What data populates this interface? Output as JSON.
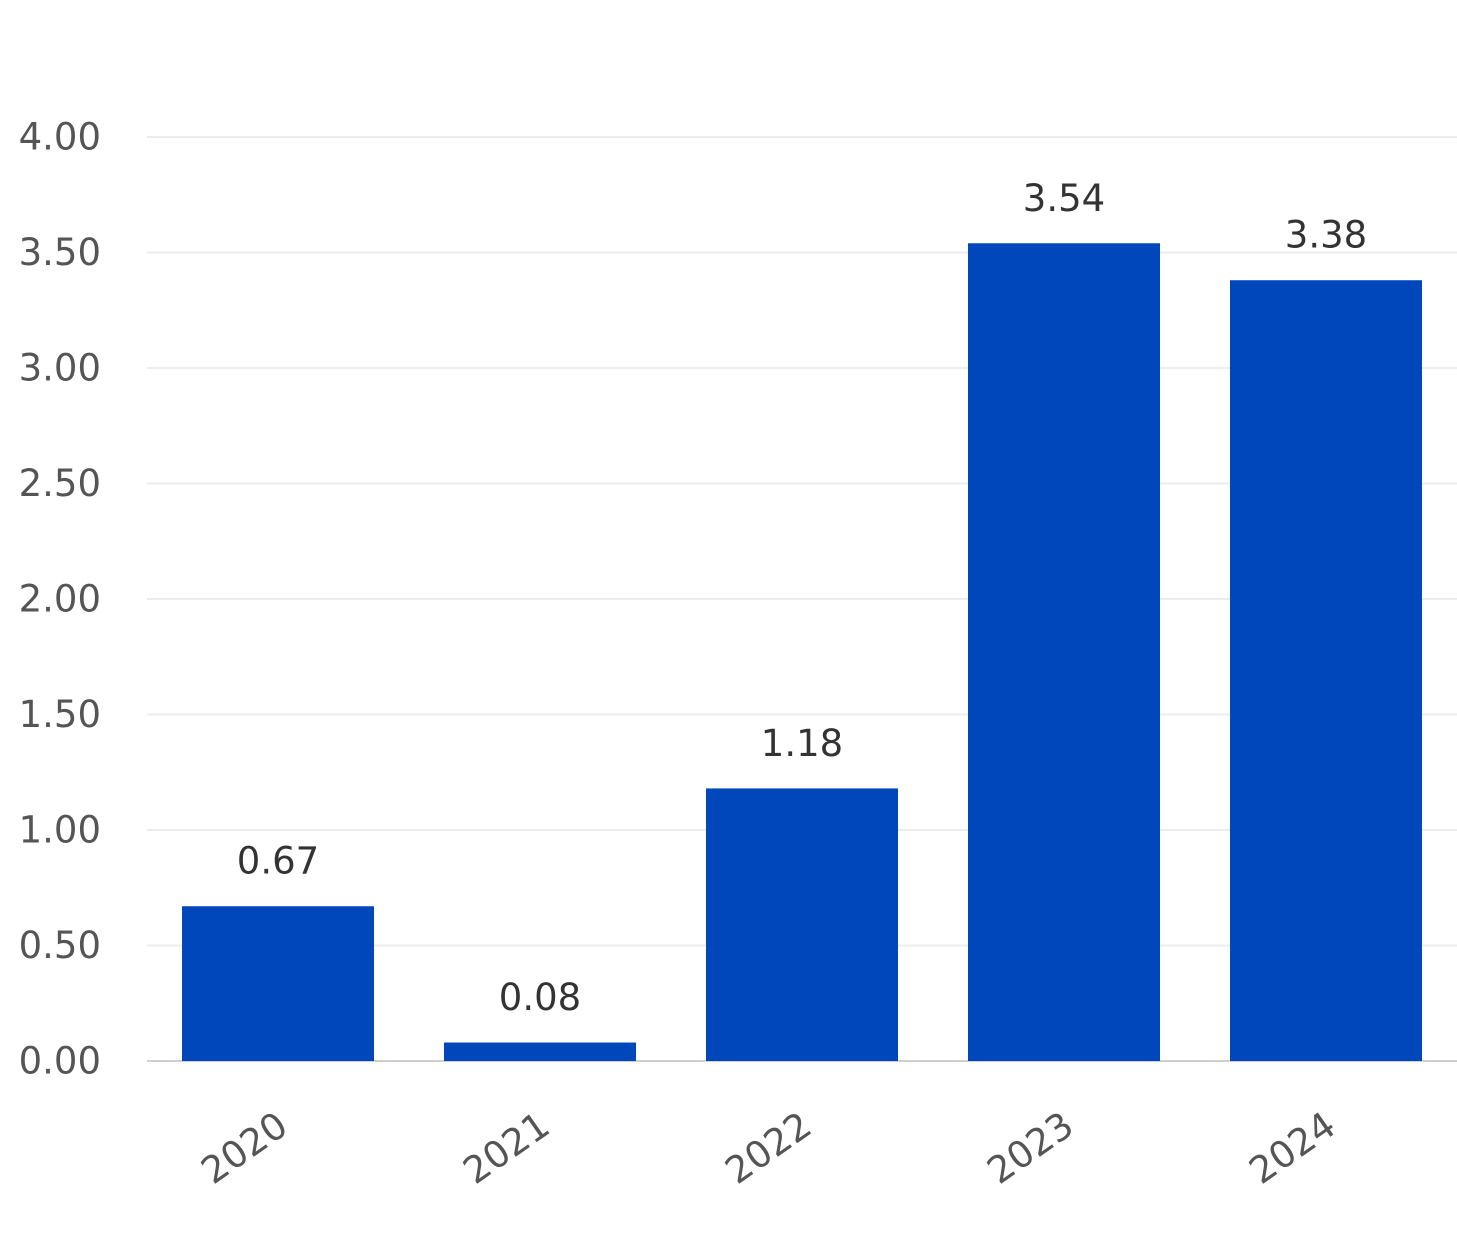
{
  "chart_data": {
    "type": "bar",
    "title": "",
    "xlabel": "",
    "ylabel": "",
    "categories": [
      "2020",
      "2021",
      "2022",
      "2023",
      "2024"
    ],
    "values": [
      0.67,
      0.08,
      1.18,
      3.54,
      3.38
    ],
    "value_labels": [
      "0.67",
      "0.08",
      "1.18",
      "3.54",
      "3.38"
    ],
    "ylim": [
      0,
      4
    ],
    "y_ticks": [
      "0.00",
      "0.50",
      "1.00",
      "1.50",
      "2.00",
      "2.50",
      "3.00",
      "3.50",
      "4.00"
    ],
    "grid": true,
    "legend": "none",
    "x_tick_rotation": "diagonal",
    "bar_color": "#0047BB",
    "grid_color": "#ECECEC",
    "axis_line_color": "#CFCFCF",
    "tick_label_color": "#555555",
    "data_label_color": "#333333"
  }
}
